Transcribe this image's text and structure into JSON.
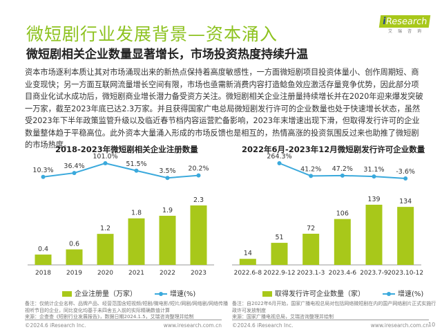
{
  "header": {
    "title": "微短剧行业发展背景—资本涌入",
    "subtitle": "微短剧相关企业数量显著增长，市场投资热度持续升温",
    "logo_text": "iResearch",
    "logo_cn": "艾瑞咨询"
  },
  "body_text": "资本市场逐利本质让其对市场涌现出来的新热点保持着高度敏感性，一方面微短剧项目投资体量小、创作周期短、商业变现快；另一方面互联网流量增长空间有限，市场也亟需新消费内容打造鲶鱼效应激活存量竞争优势，因此部分项目商业化试水成功后，微短剧商业增长潜力备受资方关注。微短剧相关企业注册量持续增长并在2020年迎来爆发突破一万家，截至2023年底已达2.3万家。并且获得国家广电总局微短剧发行许可的企业数量也处于快速增长状态，虽然受2023年下半年政策监管升级以及临近春节档内容运营贮备影响，2023年末增速出现下滑，但取得发行许可的企业数量整体趋于平稳高位。此外资本大量涌入形成的市场反馈也是相互的，热情高涨的投资氛围反过来也助推了微短剧的市场热度。",
  "colors": {
    "bar": "#a8c81a",
    "line": "#3aa9dc",
    "title": "#8dc21f"
  },
  "chart_data": [
    {
      "type": "bar+line",
      "title": "2018-2023年微短剧相关企业注册数量",
      "categories": [
        "2018",
        "2019",
        "2020",
        "2021",
        "2022",
        "2023"
      ],
      "series": [
        {
          "name": "企业注册量（万家）",
          "type": "bar",
          "values": [
            0.4,
            0.6,
            1.2,
            1.8,
            1.9,
            2.3
          ],
          "labels": [
            "0.4",
            "0.6",
            "1.2",
            "1.8",
            "1.9",
            "2.3"
          ]
        },
        {
          "name": "增速(%)",
          "type": "line",
          "values": [
            10.3,
            36.4,
            101.0,
            51.5,
            3.5,
            20.2
          ],
          "labels": [
            "10.3%",
            "36.4%",
            "101.0%",
            "51.5%",
            "3.5%",
            "20.2%"
          ]
        }
      ],
      "note": "备注：仅统计企业名称、品牌产品、经营范围含短视频/短剧/微电影/短片/网剧/网络剧/网络传播视听节目的企业，同比变化均基于未四舍五入前的实际精确数值计算",
      "source": "来源：企查查《短剧行业发展报告》，数据日期2024.1.5，艾瑞咨询整理并绘制"
    },
    {
      "type": "bar+line",
      "title": "2022年6月-2023年12月微短剧发行许可企业数量",
      "categories": [
        "2022.6-8",
        "2022.9-12",
        "2023.1-3",
        "2023.4-6",
        "2023.7-9",
        "2023.10-12"
      ],
      "series": [
        {
          "name": "取得发行许可企业数量（家）",
          "type": "bar",
          "values": [
            14,
            51,
            72,
            106,
            139,
            134
          ],
          "labels": [
            "14",
            "51",
            "72",
            "106",
            "139",
            "134"
          ]
        },
        {
          "name": "增速(%)",
          "type": "line",
          "values": [
            null,
            264.3,
            41.2,
            47.2,
            31.1,
            -3.6
          ],
          "labels": [
            "",
            "264.3%",
            "41.2%",
            "47.2%",
            "31.1%",
            "-3.6%"
          ]
        }
      ],
      "note": "备注：自2022年6月开始，国家广播电视总局对包括网络微短剧在内的国产网络剧片正式实施行政许可发放制度",
      "source": "来源：国家广播电视总局，艾瑞咨询整理并绘制"
    }
  ],
  "footer": {
    "copyright": "©2024.6 iResearch Inc.",
    "url": "www.iresearch.com.cn",
    "page": "10"
  }
}
